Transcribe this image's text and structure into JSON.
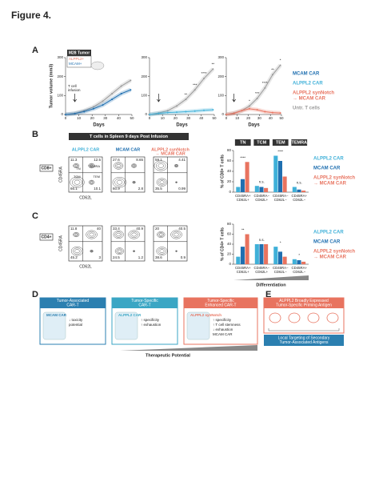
{
  "title": "Figure 4.",
  "a": {
    "label": "A",
    "y_label": "Tumor volume (mm3)",
    "x_label": "Days",
    "inset": [
      "M28 Tumor",
      "ALPPL2+",
      "MCAM+"
    ],
    "infusion": [
      "T cell",
      "infusion"
    ],
    "charts": [
      {
        "type": "line",
        "x": [
          0,
          7,
          14,
          21,
          28,
          35,
          42,
          49
        ],
        "xlim": [
          0,
          50
        ],
        "ylim": [
          0,
          300
        ],
        "xticks": [
          0,
          10,
          20,
          30,
          40,
          50
        ],
        "yticks": [
          0,
          100,
          200,
          300
        ],
        "series": [
          {
            "color": "#9a9a9a",
            "values": [
              0,
              6,
              20,
              40,
              70,
              110,
              150,
              180
            ]
          },
          {
            "color": "#1f6fb0",
            "values": [
              0,
              5,
              15,
              30,
              50,
              80,
              110,
              130
            ]
          }
        ],
        "annotations": []
      },
      {
        "type": "line",
        "x": [
          0,
          7,
          14,
          21,
          28,
          35,
          42,
          49
        ],
        "xlim": [
          0,
          50
        ],
        "ylim": [
          0,
          300
        ],
        "xticks": [
          0,
          10,
          20,
          30,
          40,
          50
        ],
        "yticks": [
          0,
          100,
          200,
          300
        ],
        "series": [
          {
            "color": "#9a9a9a",
            "values": [
              0,
              8,
              20,
              45,
              80,
              130,
              190,
              240
            ]
          },
          {
            "color": "#3fb0d8",
            "values": [
              0,
              6,
              10,
              12,
              15,
              18,
              22,
              25
            ]
          }
        ],
        "annotations": [
          {
            "x": 28,
            "text": "**"
          },
          {
            "x": 35,
            "text": "***"
          },
          {
            "x": 42,
            "text": "****"
          },
          {
            "x": 49,
            "text": "**"
          }
        ]
      },
      {
        "type": "line",
        "x": [
          0,
          7,
          14,
          21,
          28,
          35,
          42,
          49
        ],
        "xlim": [
          0,
          50
        ],
        "ylim": [
          0,
          300
        ],
        "xticks": [
          0,
          10,
          20,
          30,
          40,
          50
        ],
        "yticks": [
          0,
          100,
          200,
          300
        ],
        "series": [
          {
            "color": "#9a9a9a",
            "values": [
              0,
              8,
              20,
              45,
              85,
              140,
              210,
              260
            ]
          },
          {
            "color": "#e8735f",
            "values": [
              0,
              6,
              20,
              30,
              25,
              15,
              10,
              8
            ]
          }
        ],
        "annotations": [
          {
            "x": 21,
            "text": "*"
          },
          {
            "x": 28,
            "text": "***"
          },
          {
            "x": 35,
            "text": "****"
          },
          {
            "x": 42,
            "text": "**"
          },
          {
            "x": 49,
            "text": "*"
          }
        ]
      }
    ],
    "legend": [
      {
        "name": [
          "MCAM CAR"
        ],
        "color": "#1f6fb0"
      },
      {
        "name": [
          "ALPPL2 CAR"
        ],
        "color": "#3fb0d8"
      },
      {
        "name": [
          "ALPPL2 synNotch",
          "→ MCAM CAR"
        ],
        "color": "#e8735f"
      },
      {
        "name": [
          "Untr. T cells"
        ],
        "color": "#9a9a9a"
      }
    ]
  },
  "b": {
    "label": "B",
    "header": "T cells in Spleen 9 days Post Infusion",
    "gate": "CD8+",
    "y_label": "CD45RA",
    "x_label": "CD62L",
    "plots": [
      {
        "title": [
          "ALPPL2 CAR"
        ],
        "color": "#3fb0d8",
        "quadrants": [
          11.3,
          12.5,
          66.1,
          10.1
        ]
      },
      {
        "title": [
          "MCAM CAR"
        ],
        "color": "#1f6fb0",
        "quadrants": [
          27.6,
          8.65,
          60.9,
          2.8
        ]
      },
      {
        "title": [
          "ALPPL2 synNotch",
          "→ MCAM CAR"
        ],
        "color": "#e8735f",
        "quadrants": [
          59.1,
          4.41,
          35.5,
          0.99
        ]
      }
    ],
    "quadrant_names": [
      "TN",
      "TEMRA",
      "TCM",
      "TEM"
    ],
    "bars": {
      "type": "bar",
      "y_label": "% of CD8+ T cells",
      "headers": [
        "TN",
        "TCM",
        "TEM",
        "TEMRA"
      ],
      "categories": [
        [
          "CD45RA+",
          "CD62L+"
        ],
        [
          "CD45RA−",
          "CD62L+"
        ],
        [
          "CD45RA−",
          "CD62L−"
        ],
        [
          "CD45RA+",
          "CD62L−"
        ]
      ],
      "ylim": [
        0,
        80
      ],
      "yticks": [
        0,
        20,
        40,
        60,
        80
      ],
      "series": [
        {
          "name": [
            "ALPPL2 CAR"
          ],
          "color": "#3fb0d8",
          "values": [
            10,
            12,
            70,
            10
          ]
        },
        {
          "name": [
            "MCAM CAR"
          ],
          "color": "#1f6fb0",
          "values": [
            25,
            10,
            60,
            5
          ]
        },
        {
          "name": [
            "ALPPL2 synNotch",
            "→ MCAM CAR"
          ],
          "color": "#e8735f",
          "values": [
            58,
            8,
            30,
            3
          ]
        }
      ],
      "annotations": [
        "****",
        "n.s.",
        "****",
        "n.s."
      ]
    }
  },
  "c": {
    "label": "C",
    "gate": "CD4+",
    "y_label": "CD45RA",
    "x_label": "CD62L",
    "plots": [
      {
        "quadrants": [
          11.8,
          40.0,
          45.2,
          3.0
        ]
      },
      {
        "quadrants": [
          33.4,
          40.9,
          24.5,
          1.2
        ]
      },
      {
        "quadrants": [
          20.0,
          40.5,
          38.6,
          0.9
        ]
      }
    ],
    "bars": {
      "type": "bar",
      "y_label": "% of CD4+ T cells",
      "categories": [
        [
          "CD45RA+",
          "CD62L+"
        ],
        [
          "CD45RA−",
          "CD62L+"
        ],
        [
          "CD45RA−",
          "CD62L−"
        ],
        [
          "CD45RA+",
          "CD62L−"
        ]
      ],
      "ylim": [
        0,
        80
      ],
      "yticks": [
        0,
        20,
        40,
        60,
        80
      ],
      "series": [
        {
          "name": [
            "ALPPL2 CAR"
          ],
          "color": "#3fb0d8",
          "values": [
            15,
            40,
            35,
            10
          ]
        },
        {
          "name": [
            "MCAM CAR"
          ],
          "color": "#1f6fb0",
          "values": [
            35,
            40,
            25,
            8
          ]
        },
        {
          "name": [
            "ALPPL2 synNotch",
            "→ MCAM CAR"
          ],
          "color": "#e8735f",
          "values": [
            60,
            40,
            15,
            5
          ]
        }
      ],
      "annotations": [
        "**",
        "n.s.",
        "*",
        "*"
      ]
    },
    "axis": "Differentiation"
  },
  "d": {
    "label": "D",
    "axis": "Therapeutic Potential",
    "boxes": [
      {
        "title": [
          "Tumor-Associated",
          "CAR-T"
        ],
        "color": "#2b7fb0",
        "car": "MCAM CAR",
        "notes": [
          "↓ toxicity",
          "potential"
        ]
      },
      {
        "title": [
          "Tumor-Specific",
          "CAR-T"
        ],
        "color": "#3aa6c4",
        "car": "ALPPL2 CAR",
        "notes": [
          "↑ specificity",
          "↑ exhaustion"
        ]
      },
      {
        "title": [
          "Tumor-Specific",
          "Enhanced CAR-T"
        ],
        "color": "#e8735f",
        "car": "ALPPL2 synNotch",
        "notes": [
          "↑ specificity",
          "↑ T cell stemness",
          "↓ exhaustion",
          "MCAM CAR"
        ]
      }
    ]
  },
  "e": {
    "label": "E",
    "top": [
      "ALPPL2 Broadly Expressed",
      "Tumor-Specific Priming Antigen"
    ],
    "bottom": [
      "Local Targeting of Secondary",
      "Tumor-Associated Antigens"
    ]
  }
}
